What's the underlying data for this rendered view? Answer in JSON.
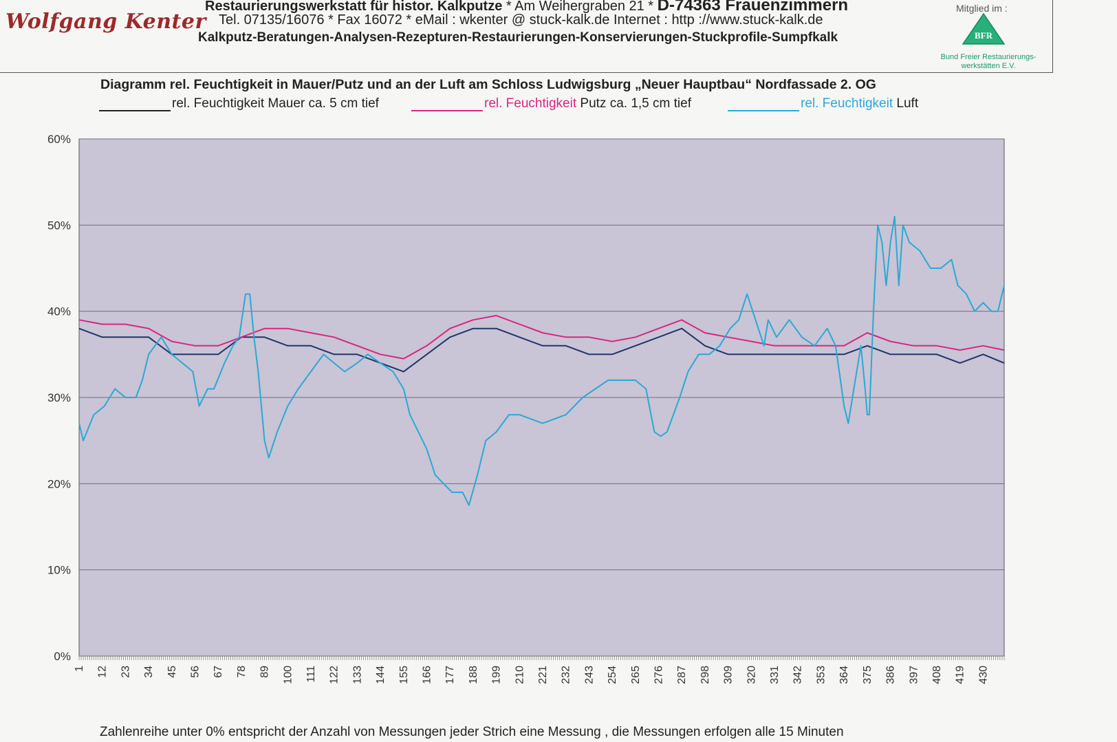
{
  "letterhead": {
    "brand": "Wolfgang Kenter",
    "line1_a": "Restaurierungswerkstatt für histor. Kalkputze",
    "line1_b": " * Am Weihergraben 21 * ",
    "line1_c": "D-74363 Frauenzimmern",
    "line2": "Tel. 07135/16076 * Fax 16072 * eMail : wkenter @ stuck-kalk.de    Internet : http ://www.stuck-kalk.de",
    "line3": "Kalkputz-Beratungen-Analysen-Rezepturen-Restaurierungen-Konservierungen-Stuckprofile-Sumpfkalk",
    "member_label": "Mitglied im :",
    "logo_text": "BFR",
    "logo_caption": "Bund Freier Restaurierungs- werkstätten E.V."
  },
  "legend": [
    {
      "prefix": "",
      "text": "rel. Feuchtigkeit Mauer ca. 5 cm tief",
      "color": "#1f3568"
    },
    {
      "prefix": "rel. Feuchtigkeit",
      "text": " Putz ca. 1,5 cm tief",
      "color": "#d8267f"
    },
    {
      "prefix": "rel. Feuchtigkeit",
      "text": " Luft",
      "color": "#2aa9d6"
    }
  ],
  "footnote": "Zahlenreihe unter 0% entspricht der Anzahl von Messungen jeder Strich eine Messung , die Messungen erfolgen alle 15 Minuten",
  "colors": {
    "plot_bg": "#c9c4d6",
    "grid": "#6f6f78"
  },
  "chart_data": {
    "type": "line",
    "title": "Diagramm rel. Feuchtigkeit in Mauer/Putz und an der Luft am Schloss Ludwigsburg „Neuer Hauptbau“ Nordfassade 2. OG",
    "xlabel": "",
    "ylabel": "",
    "ylim": [
      0,
      60
    ],
    "xlim": [
      1,
      440
    ],
    "y_ticks": [
      0,
      10,
      20,
      30,
      40,
      50,
      60
    ],
    "y_tick_labels": [
      "0%",
      "10%",
      "20%",
      "30%",
      "40%",
      "50%",
      "60%"
    ],
    "x_ticks": [
      1,
      12,
      23,
      34,
      45,
      56,
      67,
      78,
      89,
      100,
      111,
      122,
      133,
      144,
      155,
      166,
      177,
      188,
      199,
      210,
      221,
      232,
      243,
      254,
      265,
      276,
      287,
      298,
      309,
      320,
      331,
      342,
      353,
      364,
      375,
      386,
      397,
      408,
      419,
      430
    ],
    "grid": true,
    "legend_position": "top",
    "series": [
      {
        "name": "rel. Feuchtigkeit Mauer ca. 5 cm tief",
        "color": "#1f3568",
        "points": [
          [
            1,
            38
          ],
          [
            12,
            37
          ],
          [
            34,
            37
          ],
          [
            45,
            35
          ],
          [
            56,
            35
          ],
          [
            67,
            35
          ],
          [
            78,
            37
          ],
          [
            89,
            37
          ],
          [
            100,
            36
          ],
          [
            111,
            36
          ],
          [
            122,
            35
          ],
          [
            133,
            35
          ],
          [
            144,
            34
          ],
          [
            155,
            33
          ],
          [
            166,
            35
          ],
          [
            177,
            37
          ],
          [
            188,
            38
          ],
          [
            199,
            38
          ],
          [
            210,
            37
          ],
          [
            221,
            36
          ],
          [
            232,
            36
          ],
          [
            243,
            35
          ],
          [
            254,
            35
          ],
          [
            265,
            36
          ],
          [
            276,
            37
          ],
          [
            287,
            38
          ],
          [
            298,
            36
          ],
          [
            309,
            35
          ],
          [
            320,
            35
          ],
          [
            331,
            35
          ],
          [
            342,
            35
          ],
          [
            353,
            35
          ],
          [
            364,
            35
          ],
          [
            375,
            36
          ],
          [
            386,
            35
          ],
          [
            397,
            35
          ],
          [
            408,
            35
          ],
          [
            419,
            34
          ],
          [
            430,
            35
          ],
          [
            440,
            34
          ]
        ]
      },
      {
        "name": "rel. Feuchtigkeit Putz ca. 1,5 cm tief",
        "color": "#d8267f",
        "points": [
          [
            1,
            39
          ],
          [
            12,
            38.5
          ],
          [
            23,
            38.5
          ],
          [
            34,
            38
          ],
          [
            45,
            36.5
          ],
          [
            56,
            36
          ],
          [
            67,
            36
          ],
          [
            78,
            37
          ],
          [
            89,
            38
          ],
          [
            100,
            38
          ],
          [
            111,
            37.5
          ],
          [
            122,
            37
          ],
          [
            133,
            36
          ],
          [
            144,
            35
          ],
          [
            155,
            34.5
          ],
          [
            166,
            36
          ],
          [
            177,
            38
          ],
          [
            188,
            39
          ],
          [
            199,
            39.5
          ],
          [
            210,
            38.5
          ],
          [
            221,
            37.5
          ],
          [
            232,
            37
          ],
          [
            243,
            37
          ],
          [
            254,
            36.5
          ],
          [
            265,
            37
          ],
          [
            276,
            38
          ],
          [
            287,
            39
          ],
          [
            298,
            37.5
          ],
          [
            309,
            37
          ],
          [
            320,
            36.5
          ],
          [
            331,
            36
          ],
          [
            342,
            36
          ],
          [
            353,
            36
          ],
          [
            364,
            36
          ],
          [
            375,
            37.5
          ],
          [
            386,
            36.5
          ],
          [
            397,
            36
          ],
          [
            408,
            36
          ],
          [
            419,
            35.5
          ],
          [
            430,
            36
          ],
          [
            440,
            35.5
          ]
        ]
      },
      {
        "name": "rel. Feuchtigkeit Luft",
        "color": "#2aa9d6",
        "points": [
          [
            1,
            27
          ],
          [
            3,
            25
          ],
          [
            8,
            28
          ],
          [
            13,
            29
          ],
          [
            18,
            31
          ],
          [
            23,
            30
          ],
          [
            28,
            30
          ],
          [
            31,
            32
          ],
          [
            34,
            35
          ],
          [
            40,
            37
          ],
          [
            45,
            35
          ],
          [
            50,
            34
          ],
          [
            55,
            33
          ],
          [
            58,
            29
          ],
          [
            62,
            31
          ],
          [
            65,
            31
          ],
          [
            70,
            34
          ],
          [
            74,
            36
          ],
          [
            77,
            37
          ],
          [
            80,
            42
          ],
          [
            82,
            42
          ],
          [
            84,
            37
          ],
          [
            86,
            33
          ],
          [
            89,
            25
          ],
          [
            91,
            23
          ],
          [
            95,
            26
          ],
          [
            100,
            29
          ],
          [
            105,
            31
          ],
          [
            111,
            33
          ],
          [
            117,
            35
          ],
          [
            122,
            34
          ],
          [
            127,
            33
          ],
          [
            133,
            34
          ],
          [
            138,
            35
          ],
          [
            144,
            34
          ],
          [
            150,
            33
          ],
          [
            155,
            31
          ],
          [
            158,
            28
          ],
          [
            162,
            26
          ],
          [
            166,
            24
          ],
          [
            170,
            21
          ],
          [
            174,
            20
          ],
          [
            178,
            19
          ],
          [
            183,
            19
          ],
          [
            186,
            17.5
          ],
          [
            190,
            21
          ],
          [
            194,
            25
          ],
          [
            199,
            26
          ],
          [
            205,
            28
          ],
          [
            210,
            28
          ],
          [
            221,
            27
          ],
          [
            232,
            28
          ],
          [
            240,
            30
          ],
          [
            246,
            31
          ],
          [
            252,
            32
          ],
          [
            258,
            32
          ],
          [
            265,
            32
          ],
          [
            270,
            31
          ],
          [
            274,
            26
          ],
          [
            277,
            25.5
          ],
          [
            280,
            26
          ],
          [
            283,
            28
          ],
          [
            286,
            30
          ],
          [
            290,
            33
          ],
          [
            295,
            35
          ],
          [
            300,
            35
          ],
          [
            305,
            36
          ],
          [
            310,
            38
          ],
          [
            314,
            39
          ],
          [
            318,
            42
          ],
          [
            322,
            39
          ],
          [
            326,
            36
          ],
          [
            328,
            39
          ],
          [
            332,
            37
          ],
          [
            338,
            39
          ],
          [
            344,
            37
          ],
          [
            350,
            36
          ],
          [
            356,
            38
          ],
          [
            360,
            36
          ],
          [
            364,
            29
          ],
          [
            366,
            27
          ],
          [
            368,
            30
          ],
          [
            372,
            36
          ],
          [
            374,
            31
          ],
          [
            375,
            28
          ],
          [
            376,
            28
          ],
          [
            378,
            40
          ],
          [
            380,
            50
          ],
          [
            382,
            48
          ],
          [
            384,
            43
          ],
          [
            386,
            48
          ],
          [
            388,
            51
          ],
          [
            390,
            43
          ],
          [
            392,
            50
          ],
          [
            395,
            48
          ],
          [
            400,
            47
          ],
          [
            405,
            45
          ],
          [
            410,
            45
          ],
          [
            415,
            46
          ],
          [
            418,
            43
          ],
          [
            422,
            42
          ],
          [
            426,
            40
          ],
          [
            430,
            41
          ],
          [
            434,
            40
          ],
          [
            437,
            40
          ],
          [
            440,
            43
          ]
        ]
      }
    ]
  }
}
